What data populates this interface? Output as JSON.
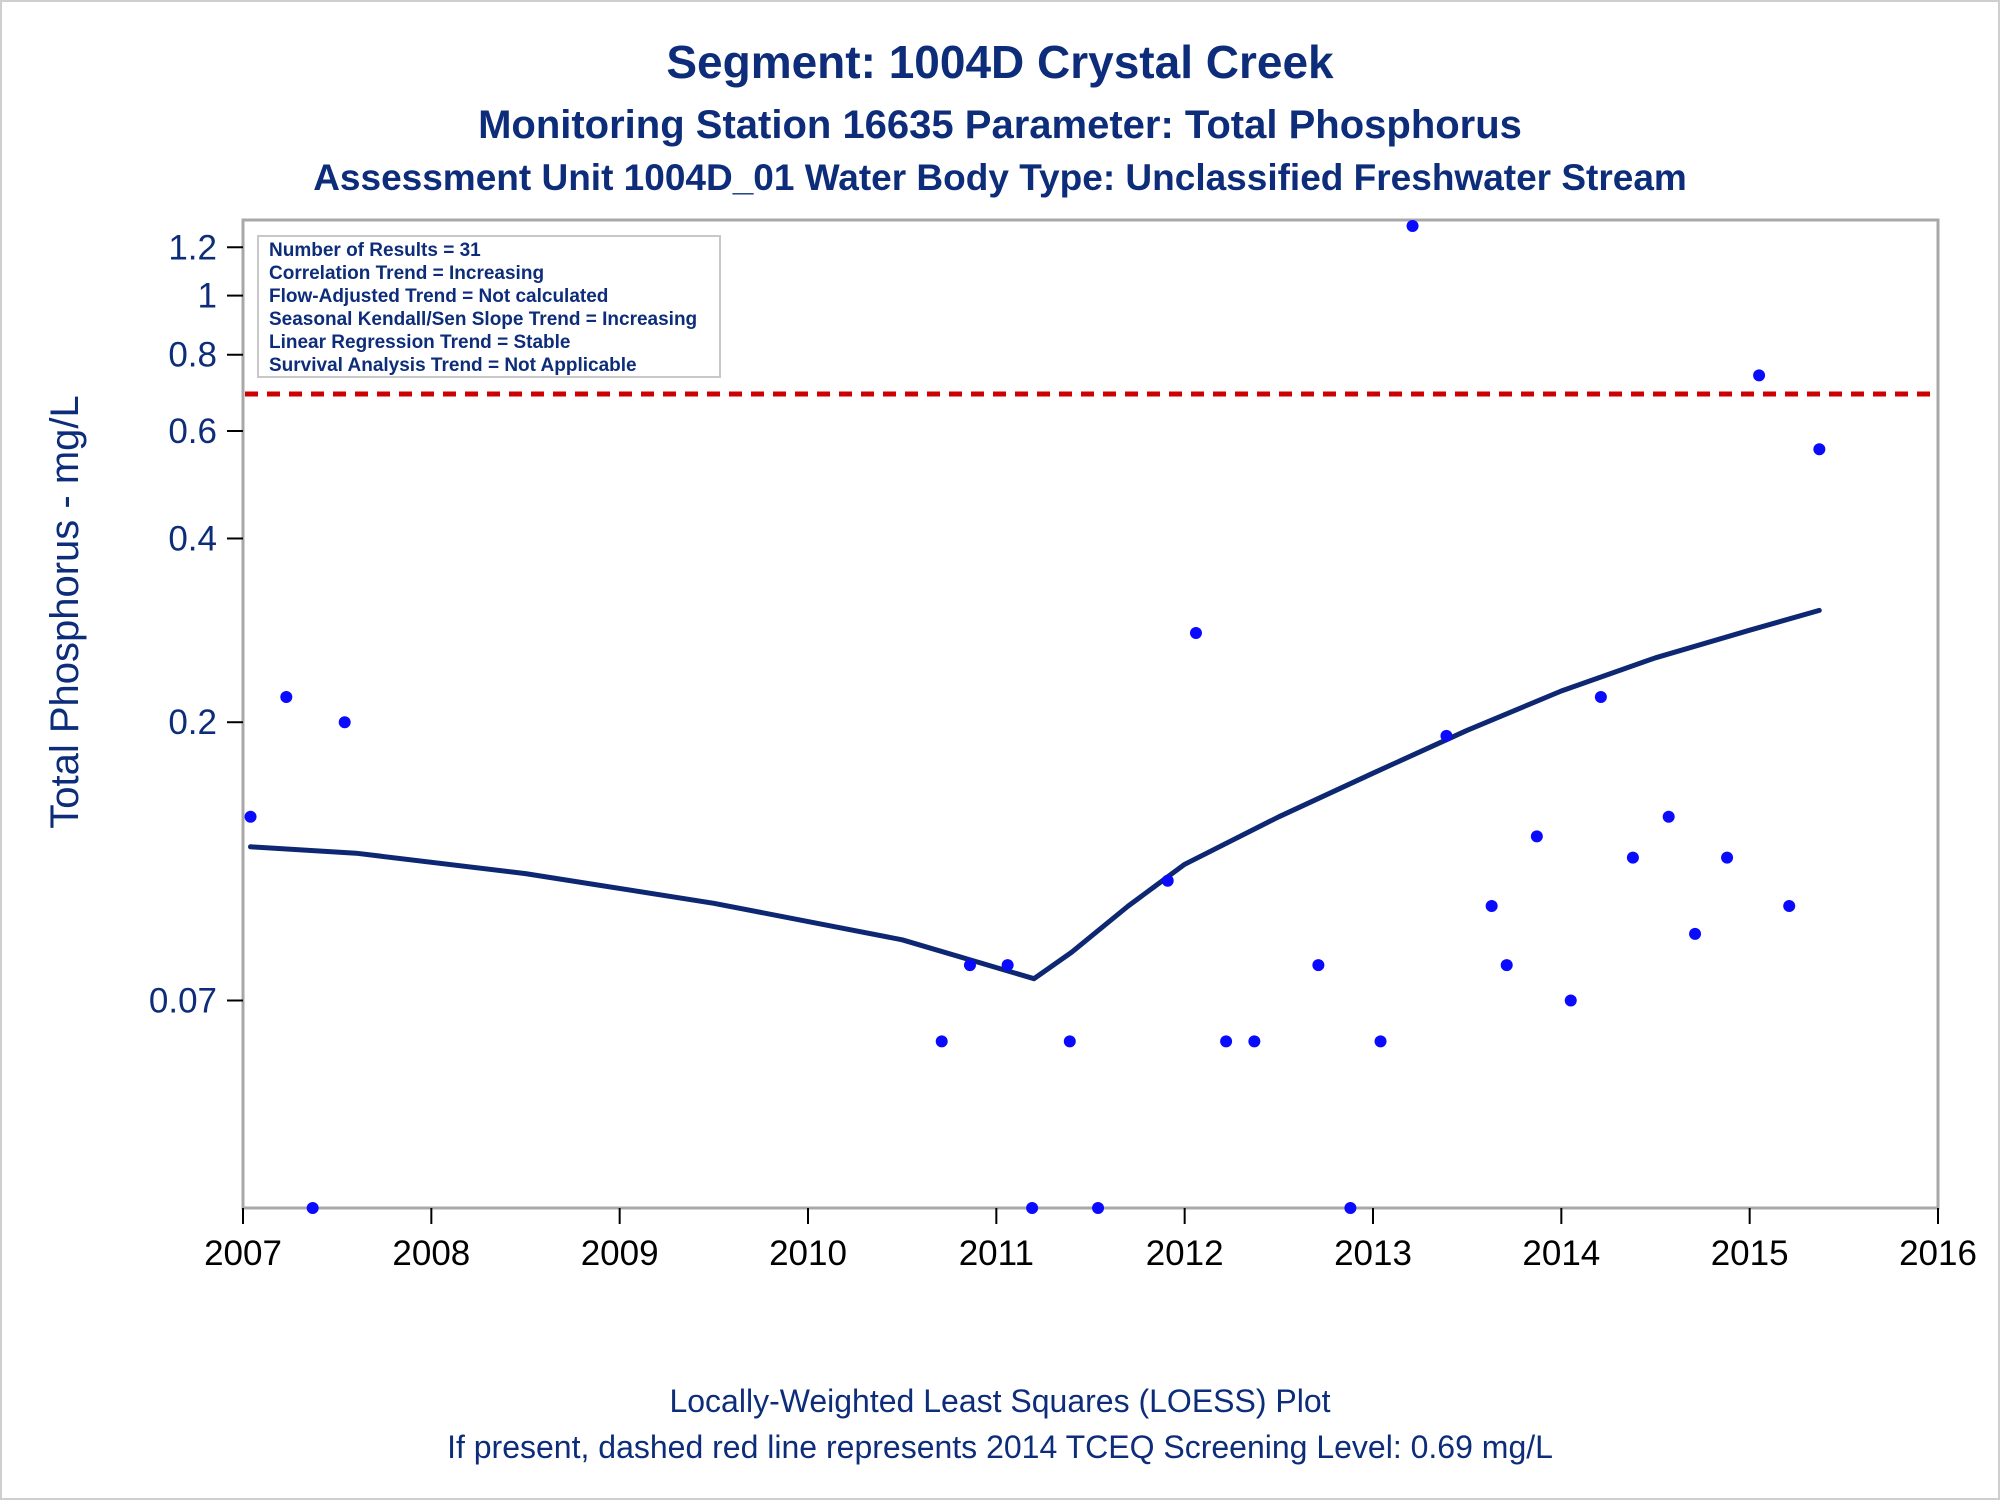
{
  "chart_data": {
    "type": "scatter",
    "title": "Segment: 1004D  Crystal Creek",
    "subtitle": "Monitoring Station 16635 Parameter: Total Phosphorus",
    "subtitle2": "Assessment Unit 1004D_01   Water Body Type: Unclassified Freshwater Stream",
    "ylabel": "Total Phosphorus - mg/L",
    "xlabel": "",
    "yscale": "log",
    "xlim": [
      2007,
      2016
    ],
    "ylim": [
      0.032,
      1.33
    ],
    "x_ticks": [
      "2007",
      "2008",
      "2009",
      "2010",
      "2011",
      "2012",
      "2013",
      "2014",
      "2015",
      "2016"
    ],
    "y_ticks": [
      {
        "value": 1.2,
        "label": "1.2"
      },
      {
        "value": 1,
        "label": "1"
      },
      {
        "value": 0.8,
        "label": "0.8"
      },
      {
        "value": 0.6,
        "label": "0.6"
      },
      {
        "value": 0.4,
        "label": "0.4"
      },
      {
        "value": 0.2,
        "label": "0.2"
      },
      {
        "value": 0.07,
        "label": "0.07"
      }
    ],
    "legend_position": "top-left",
    "stats": [
      "Number of Results = 31",
      "Correlation Trend = Increasing",
      "Flow-Adjusted Trend = Not calculated",
      "Seasonal Kendall/Sen Slope Trend = Increasing",
      "Linear Regression Trend = Stable",
      "Survival Analysis Trend = Not Applicable"
    ],
    "screening_level": 0.69,
    "points": [
      {
        "x": 2007.04,
        "y": 0.14
      },
      {
        "x": 2007.23,
        "y": 0.22
      },
      {
        "x": 2007.37,
        "y": 0.032
      },
      {
        "x": 2007.54,
        "y": 0.2
      },
      {
        "x": 2010.71,
        "y": 0.06
      },
      {
        "x": 2010.86,
        "y": 0.08
      },
      {
        "x": 2011.06,
        "y": 0.08
      },
      {
        "x": 2011.19,
        "y": 0.032
      },
      {
        "x": 2011.39,
        "y": 0.06
      },
      {
        "x": 2011.54,
        "y": 0.032
      },
      {
        "x": 2011.91,
        "y": 0.11
      },
      {
        "x": 2012.06,
        "y": 0.28
      },
      {
        "x": 2012.22,
        "y": 0.06
      },
      {
        "x": 2012.37,
        "y": 0.06
      },
      {
        "x": 2012.71,
        "y": 0.08
      },
      {
        "x": 2012.88,
        "y": 0.032
      },
      {
        "x": 2013.04,
        "y": 0.06
      },
      {
        "x": 2013.21,
        "y": 1.3
      },
      {
        "x": 2013.39,
        "y": 0.19
      },
      {
        "x": 2013.63,
        "y": 0.1
      },
      {
        "x": 2013.71,
        "y": 0.08
      },
      {
        "x": 2013.87,
        "y": 0.13
      },
      {
        "x": 2014.05,
        "y": 0.07
      },
      {
        "x": 2014.21,
        "y": 0.22
      },
      {
        "x": 2014.38,
        "y": 0.12
      },
      {
        "x": 2014.57,
        "y": 0.14
      },
      {
        "x": 2014.71,
        "y": 0.09
      },
      {
        "x": 2014.88,
        "y": 0.12
      },
      {
        "x": 2015.05,
        "y": 0.74
      },
      {
        "x": 2015.21,
        "y": 0.1
      },
      {
        "x": 2015.37,
        "y": 0.56
      }
    ],
    "loess": [
      {
        "x": 2007.04,
        "y": 0.125
      },
      {
        "x": 2007.6,
        "y": 0.122
      },
      {
        "x": 2008.5,
        "y": 0.113
      },
      {
        "x": 2009.5,
        "y": 0.101
      },
      {
        "x": 2010.5,
        "y": 0.088
      },
      {
        "x": 2011.2,
        "y": 0.076
      },
      {
        "x": 2011.4,
        "y": 0.084
      },
      {
        "x": 2011.7,
        "y": 0.1
      },
      {
        "x": 2012.0,
        "y": 0.117
      },
      {
        "x": 2012.5,
        "y": 0.14
      },
      {
        "x": 2013.0,
        "y": 0.165
      },
      {
        "x": 2013.5,
        "y": 0.194
      },
      {
        "x": 2014.0,
        "y": 0.225
      },
      {
        "x": 2014.5,
        "y": 0.255
      },
      {
        "x": 2015.0,
        "y": 0.283
      },
      {
        "x": 2015.37,
        "y": 0.305
      }
    ],
    "colors": {
      "points": "#0a0aff",
      "loess": "#0d2773",
      "screening_line": "#cc0000",
      "text": "#0d2d7a",
      "frame": "#a8a8a8"
    }
  },
  "footer": {
    "line1": "Locally-Weighted Least Squares (LOESS) Plot",
    "line2": "If present, dashed red line represents 2014 TCEQ Screening Level: 0.69 mg/L"
  }
}
